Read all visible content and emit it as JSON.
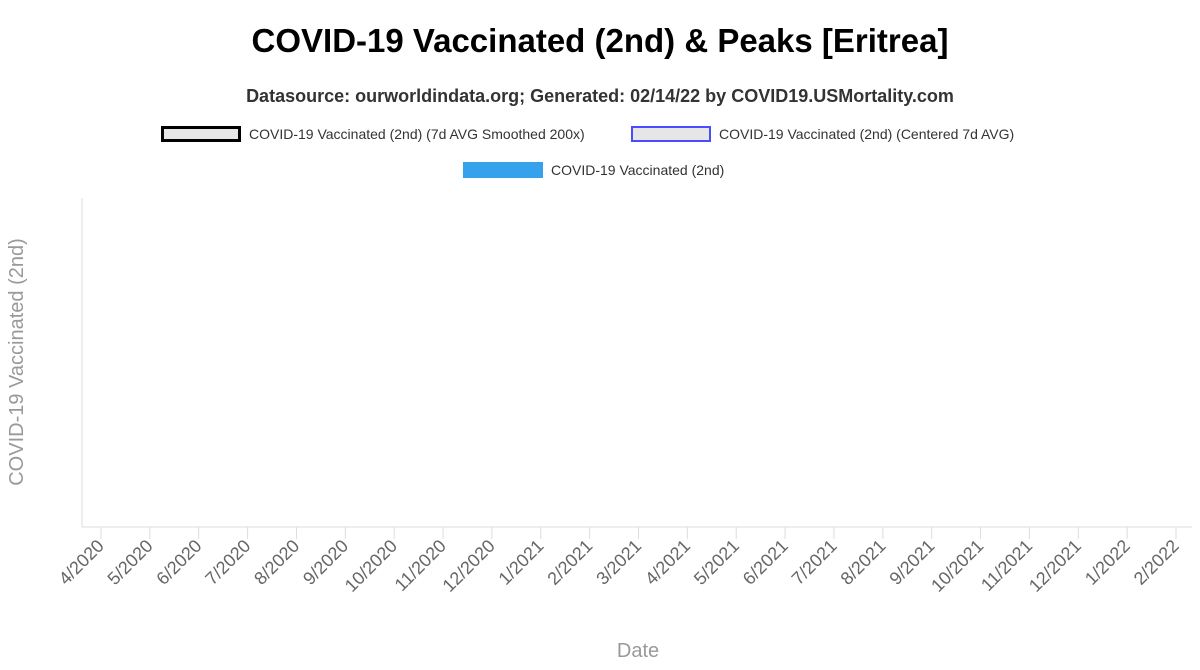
{
  "chart_data": {
    "type": "bar",
    "title": "COVID-19 Vaccinated (2nd) & Peaks [Eritrea]",
    "subtitle": "Datasource: ourworldindata.org; Generated: 02/14/22 by COVID19.USMortality.com",
    "xlabel": "Date",
    "ylabel": "COVID-19 Vaccinated (2nd)",
    "legend_position": "top",
    "grid": false,
    "series": [
      {
        "name": "COVID-19 Vaccinated (2nd) (7d AVG Smoothed 200x)",
        "type": "line",
        "color": "#000000",
        "values": []
      },
      {
        "name": "COVID-19 Vaccinated (2nd) (Centered 7d AVG)",
        "type": "line",
        "color": "#4c4cff",
        "values": []
      },
      {
        "name": "COVID-19 Vaccinated (2nd)",
        "type": "bar",
        "color": "#36a2eb",
        "values": []
      }
    ],
    "x_ticks": [
      "4/2020",
      "5/2020",
      "6/2020",
      "7/2020",
      "8/2020",
      "9/2020",
      "10/2020",
      "11/2020",
      "12/2020",
      "1/2021",
      "2/2021",
      "3/2021",
      "4/2021",
      "5/2021",
      "6/2021",
      "7/2021",
      "8/2021",
      "9/2021",
      "10/2021",
      "11/2021",
      "12/2021",
      "1/2022",
      "2/2022"
    ]
  }
}
